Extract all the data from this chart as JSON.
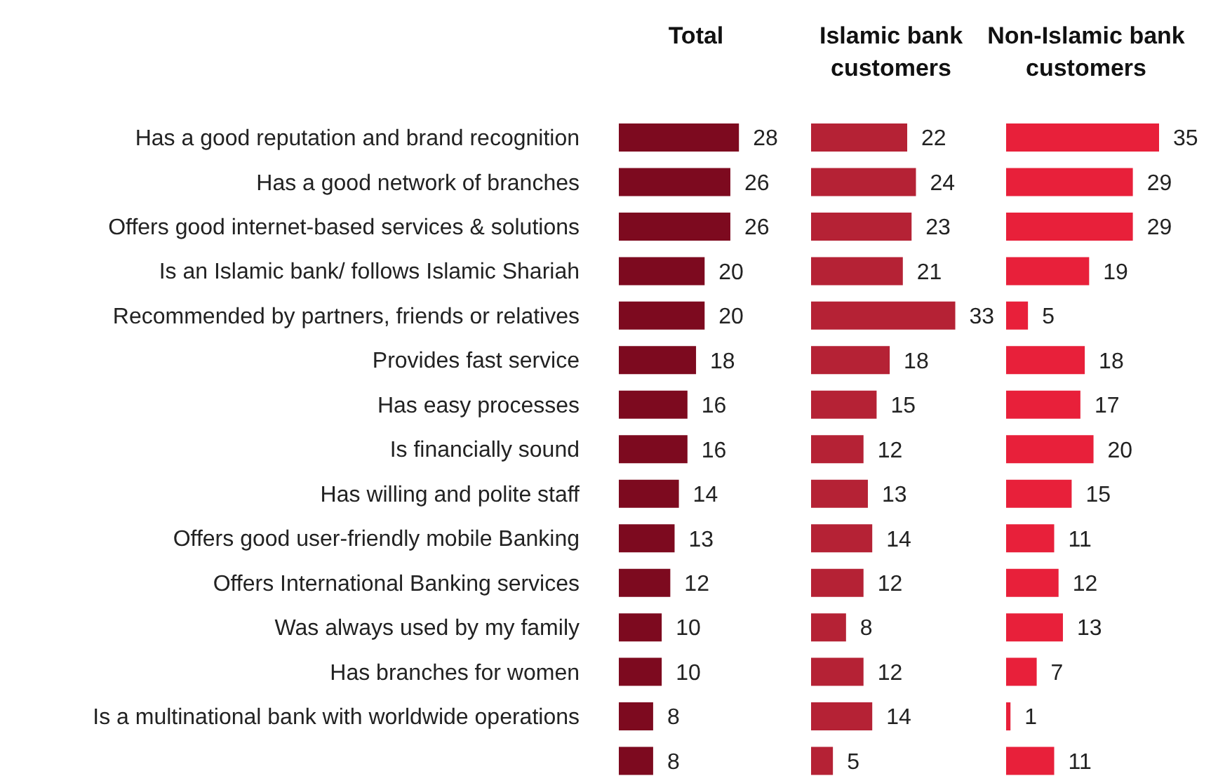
{
  "chart_data": [
    {
      "type": "bar",
      "orientation": "horizontal",
      "title": "Total",
      "categories": [
        "Has a good reputation and brand recognition",
        "Has a good network of branches",
        "Offers good internet-based services & solutions",
        "Is an Islamic bank/ follows Islamic Shariah",
        "Recommended by partners, friends or relatives",
        "Provides fast service",
        "Has easy processes",
        "Is financially sound",
        "Has willing and polite staff",
        "Offers good user-friendly mobile Banking",
        "Offers International Banking services",
        "Was always used by my family",
        "Has branches for women",
        "Is a multinational bank with worldwide operations",
        null
      ],
      "values": [
        28,
        26,
        26,
        20,
        20,
        18,
        16,
        16,
        14,
        13,
        12,
        10,
        10,
        8,
        8
      ],
      "color": "#7d0a1f",
      "data_labels": true,
      "tick_labels": "y"
    },
    {
      "type": "bar",
      "orientation": "horizontal",
      "title": "Islamic bank customers",
      "categories": [
        null,
        null,
        null,
        null,
        null,
        null,
        null,
        null,
        null,
        null,
        null,
        null,
        null,
        null,
        null
      ],
      "values": [
        22,
        24,
        23,
        21,
        33,
        18,
        15,
        12,
        13,
        14,
        12,
        8,
        12,
        14,
        5
      ],
      "color": "#b52235",
      "data_labels": true,
      "tick_labels": false
    },
    {
      "type": "bar",
      "orientation": "horizontal",
      "title": "Non-Islamic bank customers",
      "categories": [
        null,
        null,
        null,
        null,
        null,
        null,
        null,
        null,
        null,
        null,
        null,
        null,
        null,
        null,
        null
      ],
      "values": [
        35,
        29,
        29,
        19,
        5,
        18,
        17,
        20,
        15,
        11,
        12,
        13,
        7,
        1,
        11
      ],
      "color": "#e8203a",
      "data_labels": true,
      "tick_labels": false
    }
  ]
}
